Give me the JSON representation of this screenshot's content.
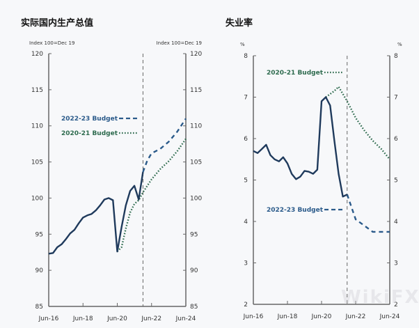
{
  "colors": {
    "actual": "#1f3a5c",
    "budget_2022": "#2a5a8a",
    "budget_2020": "#2e6b4e",
    "axis": "#666666",
    "forecast_line": "#666666"
  },
  "chart_data": [
    {
      "type": "line",
      "title": "实际国内生产总值",
      "ylabel_left": "Index 100=Dec 19",
      "ylabel_right": "Index 100=Dec 19",
      "ylim": [
        85,
        120
      ],
      "yticks": [
        "85",
        "90",
        "95",
        "100",
        "105",
        "110",
        "115",
        "120"
      ],
      "ytick_values": [
        85,
        90,
        95,
        100,
        105,
        110,
        115,
        120
      ],
      "xlim": [
        0,
        8
      ],
      "xticks": [
        "Jun-16",
        "Jun-18",
        "Jun-20",
        "Jun-22",
        "Jun-24"
      ],
      "xtick_values": [
        0,
        2,
        4,
        6,
        8
      ],
      "forecast_divider": 5.5,
      "legend": [
        {
          "label": "2022-23 Budget",
          "series": "budget_2022",
          "position": "middle-left"
        },
        {
          "label": "2020-21 Budget",
          "series": "budget_2020",
          "position": "middle-left"
        }
      ],
      "series": [
        {
          "name": "Actual",
          "key": "actual",
          "style": "solid",
          "x": [
            0,
            0.25,
            0.5,
            0.75,
            1,
            1.25,
            1.5,
            1.75,
            2,
            2.25,
            2.5,
            2.75,
            3,
            3.25,
            3.5,
            3.75,
            4,
            4.25,
            4.5,
            4.75,
            5,
            5.25,
            5.5
          ],
          "y": [
            92.3,
            92.4,
            93.2,
            93.6,
            94.3,
            95.1,
            95.6,
            96.5,
            97.3,
            97.6,
            97.8,
            98.3,
            99.0,
            99.8,
            100.0,
            99.7,
            92.6,
            96.0,
            99.0,
            101.0,
            101.7,
            99.8,
            103.6
          ]
        },
        {
          "name": "2022-23 Budget",
          "key": "budget_2022",
          "style": "dashed",
          "x": [
            5.5,
            5.75,
            6,
            6.5,
            7,
            7.5,
            8
          ],
          "y": [
            103.6,
            105.2,
            106.2,
            106.8,
            107.8,
            109.2,
            111.0
          ]
        },
        {
          "name": "2020-21 Budget",
          "key": "budget_2020",
          "style": "dotted",
          "x": [
            4,
            4.25,
            4.5,
            4.75,
            5,
            5.25,
            5.5,
            6,
            6.5,
            7,
            7.5,
            8
          ],
          "y": [
            92.6,
            93.2,
            95.8,
            98.0,
            99.2,
            99.7,
            100.8,
            102.6,
            104.0,
            105.1,
            106.5,
            108.2
          ]
        }
      ]
    },
    {
      "type": "line",
      "title": "失业率",
      "ylabel_left": "%",
      "ylabel_right": "%",
      "ylim": [
        2,
        8
      ],
      "yticks": [
        "2",
        "3",
        "4",
        "5",
        "6",
        "7",
        "8"
      ],
      "ytick_values": [
        2,
        3,
        4,
        5,
        6,
        7,
        8
      ],
      "xlim": [
        0,
        8
      ],
      "xticks": [
        "Jun-16",
        "Jun-18",
        "Jun-20",
        "Jun-22",
        "Jun-24"
      ],
      "xtick_values": [
        0,
        2,
        4,
        6,
        8
      ],
      "forecast_divider": 5.5,
      "legend": [
        {
          "label": "2020-21 Budget",
          "series": "budget_2020",
          "position": "top-left"
        },
        {
          "label": "2022-23 Budget",
          "series": "budget_2022",
          "position": "bottom-left"
        }
      ],
      "series": [
        {
          "name": "Actual",
          "key": "actual",
          "style": "solid",
          "x": [
            0,
            0.25,
            0.5,
            0.75,
            1,
            1.25,
            1.5,
            1.75,
            2,
            2.25,
            2.5,
            2.75,
            3,
            3.25,
            3.5,
            3.75,
            4,
            4.25,
            4.5,
            4.75,
            5,
            5.25,
            5.5
          ],
          "y": [
            5.7,
            5.65,
            5.75,
            5.85,
            5.6,
            5.5,
            5.45,
            5.55,
            5.4,
            5.15,
            5.02,
            5.08,
            5.22,
            5.2,
            5.15,
            5.25,
            6.9,
            7.0,
            6.8,
            5.95,
            5.15,
            4.6,
            4.65
          ]
        },
        {
          "name": "2022-23 Budget",
          "key": "budget_2022",
          "style": "dashed",
          "x": [
            5.5,
            5.75,
            6,
            6.5,
            7,
            7.5,
            8
          ],
          "y": [
            4.65,
            4.35,
            4.05,
            3.9,
            3.75,
            3.75,
            3.75
          ]
        },
        {
          "name": "2020-21 Budget",
          "key": "budget_2020",
          "style": "dotted",
          "x": [
            4.25,
            4.75,
            5,
            5.5,
            6,
            6.5,
            7,
            7.5,
            8
          ],
          "y": [
            7.0,
            7.15,
            7.25,
            6.9,
            6.5,
            6.2,
            5.95,
            5.75,
            5.5
          ]
        }
      ]
    }
  ],
  "watermark": "WikiFX"
}
